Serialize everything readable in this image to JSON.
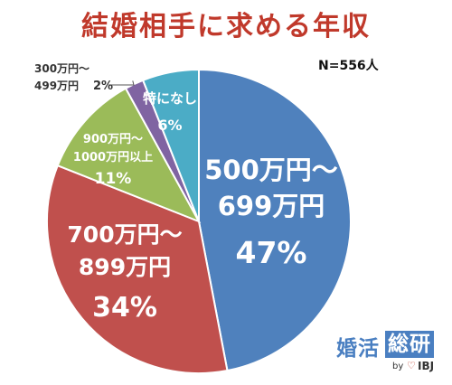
{
  "chart_data": {
    "type": "pie",
    "title": "結婚相手に求める年収",
    "sample_size": "N=556人",
    "start_angle_deg": 0,
    "direction": "clockwise",
    "slices": [
      {
        "lines": [
          "500万円～",
          "699万円"
        ],
        "percent": "47%",
        "value": 47,
        "color": "#4f81bd",
        "text_color": "#ffffff"
      },
      {
        "lines": [
          "700万円～",
          "899万円"
        ],
        "percent": "34%",
        "value": 34,
        "color": "#c0504d",
        "text_color": "#ffffff"
      },
      {
        "lines": [
          "900万円～",
          "1000万円以上"
        ],
        "percent": "11%",
        "value": 11,
        "color": "#9bbb59",
        "text_color": "#ffffff"
      },
      {
        "lines": [
          "300万円～",
          "499万円"
        ],
        "percent": "2%",
        "value": 2,
        "color": "#8064a2",
        "text_color": "#333333"
      },
      {
        "lines": [
          "特になし"
        ],
        "percent": "6%",
        "value": 6,
        "color": "#4bacc6",
        "text_color": "#ffffff"
      }
    ]
  },
  "brand": {
    "kanji1": "婚活",
    "kanji2": "総研",
    "by": "by",
    "heart": "♡",
    "ibj": "IBJ"
  }
}
